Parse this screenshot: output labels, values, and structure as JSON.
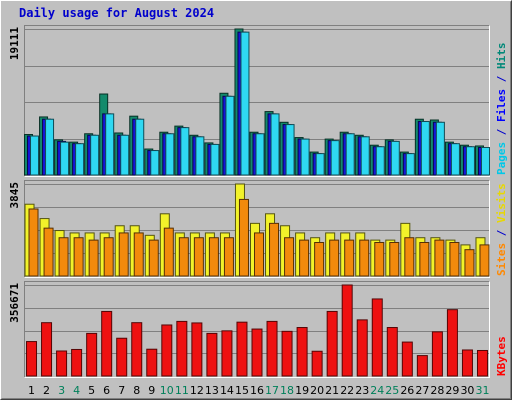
{
  "chart_data": {
    "type": "bar",
    "title": "Daily usage for August 2024",
    "categories": [
      "1",
      "2",
      "3",
      "4",
      "5",
      "6",
      "7",
      "8",
      "9",
      "10",
      "11",
      "12",
      "13",
      "14",
      "15",
      "16",
      "17",
      "18",
      "19",
      "20",
      "21",
      "22",
      "23",
      "24",
      "25",
      "26",
      "27",
      "28",
      "29",
      "30",
      "31"
    ],
    "weekend_days": [
      "3",
      "4",
      "10",
      "11",
      "17",
      "18",
      "24",
      "25",
      "31"
    ],
    "panels": [
      {
        "id": "hits-files-pages",
        "ymax_label": "19111",
        "ymax": 19111,
        "legend": [
          {
            "text": "Pages",
            "color": "#00c8e8"
          },
          {
            "text": " / ",
            "color": "#0000cc"
          },
          {
            "text": "Files",
            "color": "#0000ff"
          },
          {
            "text": " / ",
            "color": "#0000cc"
          },
          {
            "text": "Hits",
            "color": "#008878"
          }
        ],
        "series": [
          {
            "name": "Hits",
            "color": "#138a6b",
            "values": [
              5300,
              7600,
              4600,
              4300,
              5400,
              10600,
              5500,
              7700,
              3400,
              5600,
              6400,
              5200,
              4200,
              10700,
              19111,
              5600,
              8300,
              6900,
              4900,
              3000,
              4700,
              5600,
              5200,
              3900,
              4600,
              3000,
              7300,
              7200,
              4300,
              3900,
              3800
            ]
          },
          {
            "name": "Files",
            "color": "#1515d8",
            "values": [
              5100,
              7300,
              4400,
              4100,
              5200,
              8000,
              5200,
              7300,
              3200,
              5400,
              6200,
              5000,
              4000,
              10300,
              18700,
              5400,
              8000,
              6600,
              4700,
              2800,
              4500,
              5400,
              5000,
              3700,
              4400,
              2800,
              7000,
              6900,
              4100,
              3700,
              3600
            ]
          },
          {
            "name": "Pages",
            "color": "#2fd8f2",
            "values": [
              5100,
              7300,
              4300,
              4100,
              5200,
              8000,
              5200,
              7300,
              3200,
              5400,
              6200,
              5000,
              4000,
              10300,
              18700,
              5400,
              8000,
              6600,
              4700,
              2800,
              4500,
              5400,
              5000,
              3700,
              4400,
              2800,
              7000,
              6900,
              4100,
              3700,
              3600
            ]
          }
        ]
      },
      {
        "id": "visits-sites",
        "ymax_label": "3845",
        "ymax": 3845,
        "legend": [
          {
            "text": "Sites",
            "color": "#ff8800"
          },
          {
            "text": " / ",
            "color": "#0000cc"
          },
          {
            "text": "Visits",
            "color": "#e8d800"
          }
        ],
        "series": [
          {
            "name": "Visits",
            "color": "#f2f22a",
            "values": [
              3000,
              2400,
              1900,
              1800,
              1800,
              1800,
              2100,
              2100,
              1700,
              2600,
              1800,
              1800,
              1800,
              1800,
              3845,
              2200,
              2600,
              2100,
              1800,
              1600,
              1800,
              1800,
              1800,
              1500,
              1500,
              2200,
              1600,
              1600,
              1500,
              1300,
              1600
            ]
          },
          {
            "name": "Sites",
            "color": "#f28a0c",
            "values": [
              2800,
              2000,
              1600,
              1600,
              1500,
              1600,
              1800,
              1800,
              1500,
              2000,
              1600,
              1600,
              1600,
              1600,
              3200,
              1800,
              2200,
              1600,
              1500,
              1400,
              1500,
              1500,
              1500,
              1400,
              1400,
              1600,
              1400,
              1500,
              1400,
              1100,
              1300
            ]
          }
        ]
      },
      {
        "id": "kbytes",
        "ymax_label": "356671",
        "ymax": 356671,
        "legend": [
          {
            "text": "KBytes",
            "color": "#ff0000"
          }
        ],
        "series": [
          {
            "name": "KBytes",
            "color": "#ee1111",
            "values": [
              135000,
              209000,
              98000,
              104000,
              167000,
              253000,
              148000,
              209000,
              105000,
              200000,
              214000,
              208000,
              167000,
              177000,
              211000,
              184000,
              214000,
              175000,
              190000,
              97000,
              253000,
              356671,
              220000,
              302000,
              190000,
              133000,
              80000,
              173000,
              260000,
              102000,
              100000
            ]
          }
        ]
      }
    ]
  }
}
